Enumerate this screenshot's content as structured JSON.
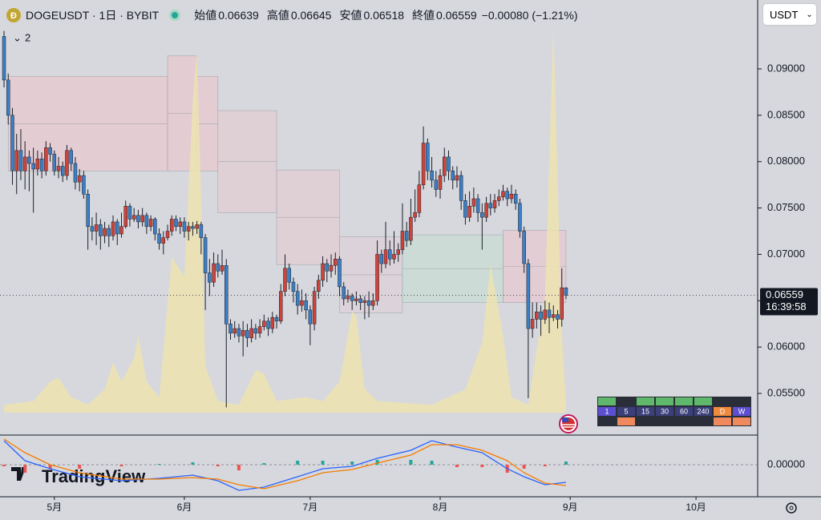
{
  "header": {
    "symbol": "DOGEUSDT · 1日 · BYBIT",
    "fields": [
      {
        "label": "始値",
        "value": "0.06639"
      },
      {
        "label": "高値",
        "value": "0.06645"
      },
      {
        "label": "安値",
        "value": "0.06518"
      },
      {
        "label": "終値",
        "value": "0.06559"
      }
    ],
    "change": "−0.00080 (−1.21%)",
    "indicators": "2",
    "currency": "USDT",
    "countdown": "16:39:58",
    "logo": "TradingView"
  },
  "chart_data": {
    "type": "candlestick",
    "up_color": "#d0433a",
    "down_color": "#3d7fc4",
    "ylim": [
      0.05051,
      0.09743
    ],
    "yticks": [
      {
        "value": 0.055,
        "label": "0.05500"
      },
      {
        "value": 0.06,
        "label": "0.06000"
      },
      {
        "value": 0.065,
        "label": "0.06500"
      },
      {
        "value": 0.07,
        "label": "0.07000"
      },
      {
        "value": 0.075,
        "label": "0.07500"
      },
      {
        "value": 0.08,
        "label": "0.08000"
      },
      {
        "value": 0.085,
        "label": "0.08500"
      },
      {
        "value": 0.09,
        "label": "0.09000"
      }
    ],
    "xlim": [
      -0.96,
      179.7
    ],
    "xticks": [
      {
        "value": 12,
        "label": "5月"
      },
      {
        "value": 43,
        "label": "6月"
      },
      {
        "value": 73,
        "label": "7月"
      },
      {
        "value": 104,
        "label": "8月"
      },
      {
        "value": 135,
        "label": "9月"
      },
      {
        "value": 165,
        "label": "10月"
      }
    ],
    "ohlc": [
      [
        0.0935,
        0.0941,
        0.088,
        0.0888
      ],
      [
        0.0888,
        0.0895,
        0.084,
        0.085
      ],
      [
        0.085,
        0.0858,
        0.0775,
        0.079
      ],
      [
        0.079,
        0.083,
        0.0765,
        0.0812
      ],
      [
        0.0812,
        0.0835,
        0.078,
        0.079
      ],
      [
        0.079,
        0.0822,
        0.077,
        0.0805
      ],
      [
        0.0805,
        0.0812,
        0.0768,
        0.0798
      ],
      [
        0.0798,
        0.0815,
        0.0745,
        0.0792
      ],
      [
        0.0792,
        0.0812,
        0.0785,
        0.0803
      ],
      [
        0.0803,
        0.081,
        0.0782,
        0.079
      ],
      [
        0.079,
        0.0822,
        0.0785,
        0.0815
      ],
      [
        0.0815,
        0.082,
        0.08,
        0.0808
      ],
      [
        0.0808,
        0.0812,
        0.0785,
        0.079
      ],
      [
        0.079,
        0.0805,
        0.0782,
        0.0795
      ],
      [
        0.0795,
        0.08,
        0.0778,
        0.0785
      ],
      [
        0.0785,
        0.0818,
        0.078,
        0.0812
      ],
      [
        0.0812,
        0.0815,
        0.079,
        0.0798
      ],
      [
        0.0798,
        0.0805,
        0.077,
        0.0778
      ],
      [
        0.0778,
        0.0792,
        0.0768,
        0.0785
      ],
      [
        0.0785,
        0.079,
        0.076,
        0.0765
      ],
      [
        0.0765,
        0.077,
        0.0705,
        0.073
      ],
      [
        0.073,
        0.074,
        0.0715,
        0.0725
      ],
      [
        0.0725,
        0.0745,
        0.071,
        0.0732
      ],
      [
        0.0732,
        0.0738,
        0.0705,
        0.072
      ],
      [
        0.072,
        0.0735,
        0.0712,
        0.0728
      ],
      [
        0.0728,
        0.0732,
        0.0708,
        0.072
      ],
      [
        0.072,
        0.0742,
        0.0715,
        0.0735
      ],
      [
        0.0735,
        0.0738,
        0.071,
        0.0722
      ],
      [
        0.0722,
        0.0745,
        0.0718,
        0.073
      ],
      [
        0.073,
        0.0758,
        0.0728,
        0.0752
      ],
      [
        0.0752,
        0.0755,
        0.073,
        0.0738
      ],
      [
        0.0738,
        0.075,
        0.0735,
        0.0742
      ],
      [
        0.0742,
        0.0748,
        0.0728,
        0.0735
      ],
      [
        0.0735,
        0.075,
        0.073,
        0.0742
      ],
      [
        0.0742,
        0.0745,
        0.0722,
        0.073
      ],
      [
        0.073,
        0.0742,
        0.0725,
        0.0738
      ],
      [
        0.0738,
        0.074,
        0.0715,
        0.0722
      ],
      [
        0.0722,
        0.0728,
        0.0705,
        0.0712
      ],
      [
        0.0712,
        0.0725,
        0.07,
        0.0718
      ],
      [
        0.0718,
        0.0732,
        0.0715,
        0.0725
      ],
      [
        0.0725,
        0.0742,
        0.072,
        0.0738
      ],
      [
        0.0738,
        0.0742,
        0.0725,
        0.073
      ],
      [
        0.073,
        0.074,
        0.0722,
        0.0735
      ],
      [
        0.0735,
        0.074,
        0.0718,
        0.0725
      ],
      [
        0.0725,
        0.0735,
        0.0715,
        0.073
      ],
      [
        0.073,
        0.0735,
        0.072,
        0.0728
      ],
      [
        0.0728,
        0.0736,
        0.0722,
        0.0732
      ],
      [
        0.0732,
        0.0735,
        0.07,
        0.0718
      ],
      [
        0.0718,
        0.0722,
        0.064,
        0.068
      ],
      [
        0.068,
        0.0695,
        0.0655,
        0.067
      ],
      [
        0.067,
        0.0702,
        0.0665,
        0.069
      ],
      [
        0.069,
        0.07,
        0.0675,
        0.0682
      ],
      [
        0.0682,
        0.0705,
        0.0678,
        0.0688
      ],
      [
        0.0688,
        0.0695,
        0.0535,
        0.0625
      ],
      [
        0.0625,
        0.063,
        0.0608,
        0.0615
      ],
      [
        0.0615,
        0.0628,
        0.061,
        0.062
      ],
      [
        0.062,
        0.0625,
        0.0605,
        0.0612
      ],
      [
        0.0612,
        0.0628,
        0.059,
        0.0618
      ],
      [
        0.0618,
        0.0625,
        0.06,
        0.061
      ],
      [
        0.061,
        0.063,
        0.0605,
        0.062
      ],
      [
        0.062,
        0.0625,
        0.0608,
        0.0615
      ],
      [
        0.0615,
        0.063,
        0.061,
        0.0622
      ],
      [
        0.0622,
        0.0635,
        0.0618,
        0.0628
      ],
      [
        0.0628,
        0.0632,
        0.0612,
        0.062
      ],
      [
        0.062,
        0.0638,
        0.0615,
        0.0632
      ],
      [
        0.0632,
        0.0635,
        0.062,
        0.0628
      ],
      [
        0.0628,
        0.0668,
        0.0625,
        0.066
      ],
      [
        0.066,
        0.07,
        0.0655,
        0.0685
      ],
      [
        0.0685,
        0.069,
        0.0662,
        0.067
      ],
      [
        0.067,
        0.0675,
        0.0648,
        0.066
      ],
      [
        0.066,
        0.0668,
        0.0635,
        0.0645
      ],
      [
        0.0645,
        0.0662,
        0.0638,
        0.065
      ],
      [
        0.065,
        0.0658,
        0.063,
        0.064
      ],
      [
        0.064,
        0.0645,
        0.0602,
        0.0625
      ],
      [
        0.0625,
        0.0665,
        0.0618,
        0.066
      ],
      [
        0.066,
        0.0678,
        0.0652,
        0.0672
      ],
      [
        0.0672,
        0.0698,
        0.0665,
        0.069
      ],
      [
        0.069,
        0.0695,
        0.067,
        0.0682
      ],
      [
        0.0682,
        0.07,
        0.0675,
        0.0688
      ],
      [
        0.0688,
        0.0702,
        0.0678,
        0.0695
      ],
      [
        0.0695,
        0.0698,
        0.0655,
        0.0665
      ],
      [
        0.0665,
        0.067,
        0.0645,
        0.0652
      ],
      [
        0.0652,
        0.0662,
        0.0648,
        0.0655
      ],
      [
        0.0655,
        0.0658,
        0.064,
        0.065
      ],
      [
        0.065,
        0.066,
        0.0645,
        0.0652
      ],
      [
        0.0652,
        0.0656,
        0.064,
        0.0648
      ],
      [
        0.0648,
        0.0655,
        0.063,
        0.065
      ],
      [
        0.065,
        0.066,
        0.0632,
        0.0645
      ],
      [
        0.0645,
        0.0658,
        0.064,
        0.065
      ],
      [
        0.065,
        0.0715,
        0.0645,
        0.07
      ],
      [
        0.07,
        0.0705,
        0.068,
        0.069
      ],
      [
        0.069,
        0.0735,
        0.0685,
        0.0705
      ],
      [
        0.0705,
        0.0715,
        0.0688,
        0.0695
      ],
      [
        0.0695,
        0.0725,
        0.069,
        0.07
      ],
      [
        0.07,
        0.0712,
        0.0692,
        0.0705
      ],
      [
        0.0705,
        0.0755,
        0.07,
        0.0725
      ],
      [
        0.0725,
        0.0735,
        0.0708,
        0.0715
      ],
      [
        0.0715,
        0.076,
        0.071,
        0.074
      ],
      [
        0.074,
        0.077,
        0.0735,
        0.0745
      ],
      [
        0.0745,
        0.079,
        0.074,
        0.0775
      ],
      [
        0.0775,
        0.0838,
        0.077,
        0.082
      ],
      [
        0.082,
        0.0825,
        0.078,
        0.079
      ],
      [
        0.079,
        0.0805,
        0.0772,
        0.078
      ],
      [
        0.078,
        0.079,
        0.0762,
        0.077
      ],
      [
        0.077,
        0.0792,
        0.076,
        0.0785
      ],
      [
        0.0785,
        0.0815,
        0.0778,
        0.0805
      ],
      [
        0.0805,
        0.0812,
        0.078,
        0.079
      ],
      [
        0.079,
        0.0795,
        0.077,
        0.078
      ],
      [
        0.078,
        0.0795,
        0.0772,
        0.0785
      ],
      [
        0.0785,
        0.079,
        0.0748,
        0.0758
      ],
      [
        0.0758,
        0.0765,
        0.0732,
        0.074
      ],
      [
        0.074,
        0.0768,
        0.0735,
        0.0752
      ],
      [
        0.0752,
        0.0772,
        0.0745,
        0.076
      ],
      [
        0.076,
        0.0765,
        0.0735,
        0.0745
      ],
      [
        0.0745,
        0.0755,
        0.0705,
        0.074
      ],
      [
        0.074,
        0.0762,
        0.0735,
        0.0755
      ],
      [
        0.0755,
        0.0765,
        0.0742,
        0.075
      ],
      [
        0.075,
        0.0765,
        0.0745,
        0.0758
      ],
      [
        0.0758,
        0.077,
        0.0752,
        0.0762
      ],
      [
        0.0762,
        0.0775,
        0.0758,
        0.0768
      ],
      [
        0.0768,
        0.0772,
        0.0752,
        0.076
      ],
      [
        0.076,
        0.0775,
        0.0755,
        0.0765
      ],
      [
        0.0765,
        0.077,
        0.0748,
        0.0755
      ],
      [
        0.0755,
        0.076,
        0.0718,
        0.0725
      ],
      [
        0.0725,
        0.073,
        0.068,
        0.069
      ],
      [
        0.069,
        0.0695,
        0.0545,
        0.062
      ],
      [
        0.062,
        0.0648,
        0.061,
        0.063
      ],
      [
        0.063,
        0.0648,
        0.062,
        0.0638
      ],
      [
        0.0638,
        0.0645,
        0.0612,
        0.063
      ],
      [
        0.063,
        0.065,
        0.0625,
        0.064
      ],
      [
        0.064,
        0.0648,
        0.0615,
        0.0632
      ],
      [
        0.0632,
        0.0645,
        0.0628,
        0.0635
      ],
      [
        0.0635,
        0.064,
        0.062,
        0.063
      ],
      [
        0.063,
        0.0685,
        0.0622,
        0.0664
      ],
      [
        0.06639,
        0.06645,
        0.06518,
        0.06559
      ]
    ],
    "last_price": 0.06559,
    "cloud": [
      {
        "x": [
          1,
          39
        ],
        "upper": 0.0892,
        "lower": 0.079,
        "color": "#e8c8cf"
      },
      {
        "x": [
          39,
          46
        ],
        "upper": 0.0914,
        "lower": 0.079,
        "color": "#e8c8cf"
      },
      {
        "x": [
          46,
          51
        ],
        "upper": 0.0892,
        "lower": 0.079,
        "color": "#e8c8cf"
      },
      {
        "x": [
          51,
          65
        ],
        "upper": 0.0855,
        "lower": 0.0745,
        "color": "#e2cdd3"
      },
      {
        "x": [
          65,
          80
        ],
        "upper": 0.0791,
        "lower": 0.0689,
        "color": "#e2cdd3"
      },
      {
        "x": [
          80,
          95
        ],
        "upper": 0.0719,
        "lower": 0.0637,
        "color": "#dcd1d7"
      },
      {
        "x": [
          95,
          119
        ],
        "upper": 0.0721,
        "lower": 0.0648,
        "color": "#c9dcd3"
      },
      {
        "x": [
          119,
          134
        ],
        "upper": 0.0726,
        "lower": 0.0648,
        "color": "#e6c9d0"
      }
    ],
    "volume": {
      "color": "#ede3b0",
      "vlim": [
        0,
        100
      ],
      "x": [
        0,
        7,
        11,
        13,
        16,
        20,
        24,
        26,
        28,
        31,
        32,
        34,
        37,
        40,
        43,
        45,
        46,
        47,
        48,
        51,
        56,
        60,
        62,
        65,
        72,
        76,
        80,
        83,
        84,
        86,
        89,
        102,
        110,
        114,
        116,
        119,
        121,
        125,
        129,
        131,
        133,
        134
      ],
      "values": [
        2,
        3,
        8,
        9,
        4,
        2,
        6,
        13,
        8,
        14,
        20,
        8,
        4,
        40,
        35,
        80,
        93,
        55,
        12,
        3,
        2,
        11,
        10,
        3,
        4,
        3,
        8,
        26,
        25,
        6,
        3,
        2,
        6,
        18,
        38,
        20,
        4,
        2,
        30,
        100,
        20,
        3
      ]
    },
    "macd": {
      "ylim": [
        -0.004,
        0.0037
      ],
      "yticks": [
        {
          "value": 0,
          "label": "0.00000"
        }
      ],
      "macd_color": "#2962ff",
      "signal_color": "#f57c00",
      "x": [
        0,
        5,
        11,
        18,
        28,
        37,
        45,
        51,
        56,
        62,
        70,
        76,
        83,
        89,
        97,
        102,
        108,
        114,
        120,
        124,
        129,
        134
      ],
      "macd": [
        0.003,
        0.0005,
        -0.0005,
        -0.0015,
        -0.002,
        -0.0017,
        -0.0013,
        -0.002,
        -0.0032,
        -0.0028,
        -0.0015,
        -0.0005,
        -0.0002,
        0.0008,
        0.0018,
        0.003,
        0.0022,
        0.0015,
        -0.0005,
        -0.0015,
        -0.0025,
        -0.0022
      ],
      "signal": [
        0.0032,
        0.0015,
        0,
        -0.001,
        -0.0018,
        -0.0018,
        -0.0016,
        -0.0018,
        -0.0025,
        -0.003,
        -0.002,
        -0.001,
        -0.0006,
        0.0002,
        0.0012,
        0.0025,
        0.0025,
        0.0018,
        0.0005,
        -0.001,
        -0.0023,
        -0.0026
      ],
      "hist": [
        -0.0002,
        -0.001,
        -0.0005,
        -0.0005,
        -0.0002,
        0.0001,
        0.0003,
        -0.0002,
        -0.0007,
        0.0002,
        0.0005,
        0.0005,
        0.0004,
        0.0006,
        0.0006,
        0.0005,
        -0.0003,
        -0.0003,
        -0.001,
        -0.0005,
        -0.0002,
        0.0004
      ]
    },
    "timeframes": [
      "1",
      "5",
      "15",
      "30",
      "60",
      "240",
      "D",
      "W"
    ]
  }
}
